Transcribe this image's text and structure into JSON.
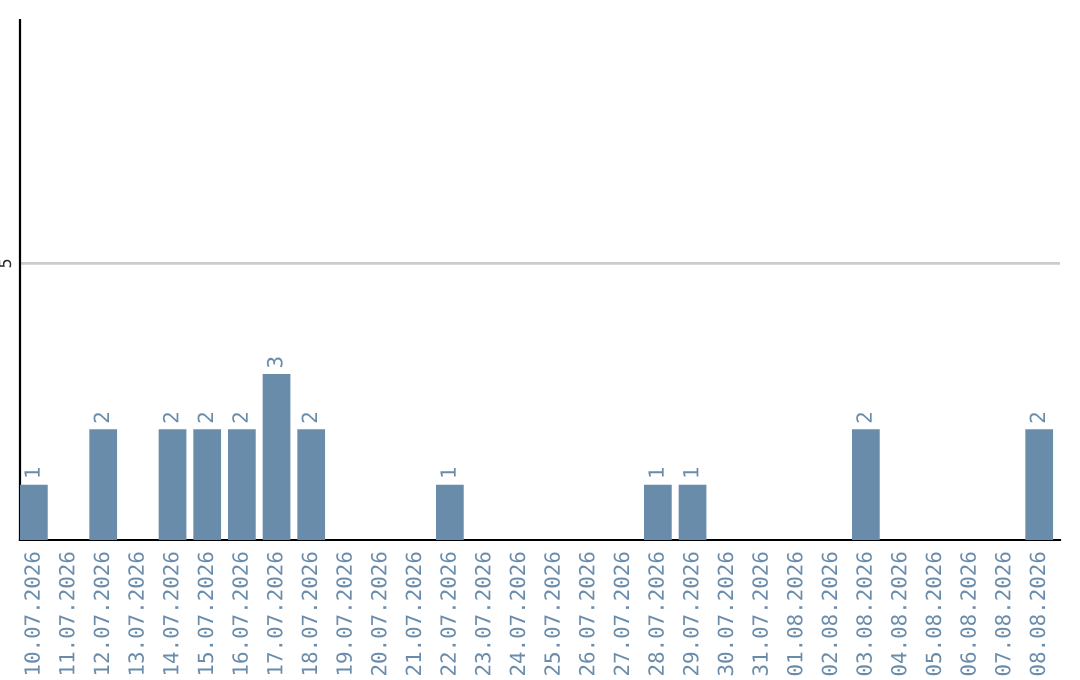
{
  "chart_data": {
    "type": "bar",
    "categories": [
      "10.07.2026",
      "11.07.2026",
      "12.07.2026",
      "13.07.2026",
      "14.07.2026",
      "15.07.2026",
      "16.07.2026",
      "17.07.2026",
      "18.07.2026",
      "19.07.2026",
      "20.07.2026",
      "21.07.2026",
      "22.07.2026",
      "23.07.2026",
      "24.07.2026",
      "25.07.2026",
      "26.07.2026",
      "27.07.2026",
      "28.07.2026",
      "29.07.2026",
      "30.07.2026",
      "31.07.2026",
      "01.08.2026",
      "02.08.2026",
      "03.08.2026",
      "04.08.2026",
      "05.08.2026",
      "06.08.2026",
      "07.08.2026",
      "08.08.2026"
    ],
    "values": [
      1,
      0,
      2,
      0,
      2,
      2,
      2,
      3,
      2,
      0,
      0,
      0,
      1,
      0,
      0,
      0,
      0,
      0,
      1,
      1,
      0,
      0,
      0,
      0,
      2,
      0,
      0,
      0,
      0,
      2
    ],
    "value_labels": [
      "1",
      null,
      "2",
      null,
      "2",
      "2",
      "2",
      "3",
      "2",
      null,
      null,
      null,
      "1",
      null,
      null,
      null,
      null,
      null,
      "1",
      "1",
      null,
      null,
      null,
      null,
      "2",
      null,
      null,
      null,
      null,
      "2"
    ],
    "color": "#6a8cab",
    "ylim": [
      0,
      9.4
    ],
    "yticks": [
      5
    ],
    "grid": "y",
    "legend": false
  }
}
